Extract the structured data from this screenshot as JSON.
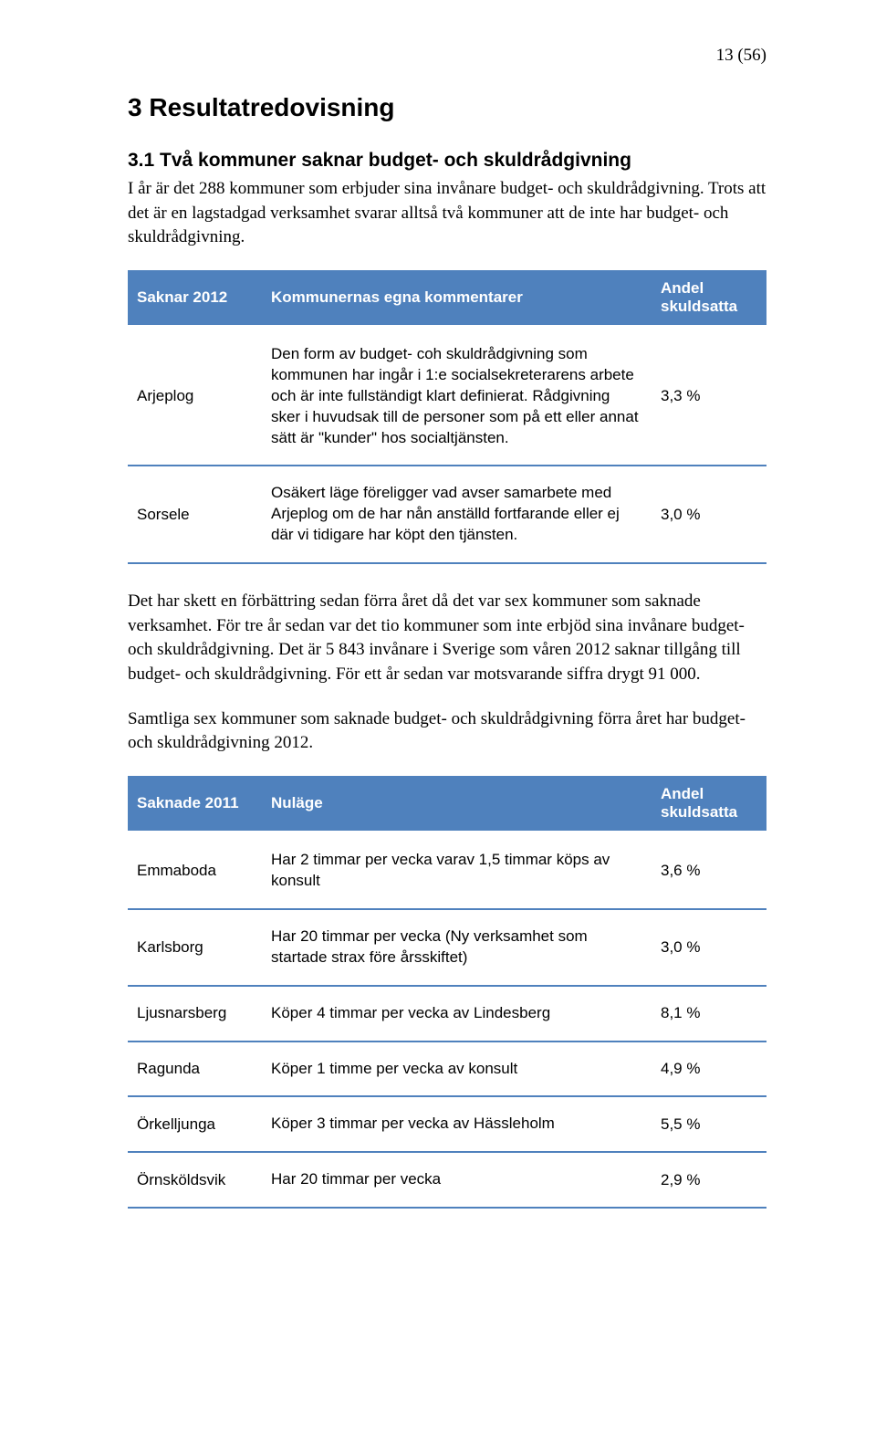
{
  "page_number": "13 (56)",
  "section_heading": "3  Resultatredovisning",
  "subsection_heading": "3.1  Två kommuner saknar budget- och skuldrådgivning",
  "intro_p1": "I år är det 288 kommuner som erbjuder sina invånare budget- och skuldrådgivning. Trots att det är en lagstadgad verksamhet svarar alltså två kommuner att de inte har budget- och skuldrådgivning.",
  "table1": {
    "header_col1": "Saknar 2012",
    "header_col2": "Kommunernas egna kommentarer",
    "header_col3": "Andel skuldsatta",
    "rows": [
      {
        "name": "Arjeplog",
        "comment": "Den form av budget- coh skuldrådgivning som kommunen har ingår i 1:e socialsekreterarens arbete och är inte fullständigt klart definierat. Rådgivning sker i huvudsak till de personer som på ett eller annat sätt är \"kunder\" hos socialtjänsten.",
        "value": "3,3 %"
      },
      {
        "name": "Sorsele",
        "comment": "Osäkert läge föreligger vad avser samarbete med Arjeplog om de har nån anställd fortfarande eller ej där vi tidigare har köpt den tjänsten.",
        "value": "3,0 %"
      }
    ]
  },
  "mid_p1": "Det har skett en förbättring sedan förra året då det var sex kommuner som saknade verksamhet. För tre år sedan var det tio kommuner som inte erbjöd sina invånare budget- och skuldrådgivning. Det är 5 843 invånare i Sverige som våren 2012 saknar tillgång till budget- och skuldrådgivning. För ett år sedan var motsvarande siffra drygt 91 000.",
  "mid_p2": "Samtliga sex kommuner som saknade budget- och skuldrådgivning förra året har budget- och skuldrådgivning 2012.",
  "table2": {
    "header_col1": "Saknade 2011",
    "header_col2": "Nuläge",
    "header_col3": "Andel skuldsatta",
    "rows": [
      {
        "name": "Emmaboda",
        "comment": "Har 2 timmar per vecka varav 1,5 timmar köps av konsult",
        "value": "3,6 %"
      },
      {
        "name": "Karlsborg",
        "comment": "Har 20 timmar per vecka (Ny verksamhet som startade strax före årsskiftet)",
        "value": "3,0 %"
      },
      {
        "name": "Ljusnarsberg",
        "comment": "Köper 4 timmar per vecka av Lindesberg",
        "value": "8,1 %"
      },
      {
        "name": "Ragunda",
        "comment": "Köper 1 timme per vecka av konsult",
        "value": "4,9 %"
      },
      {
        "name": "Örkelljunga",
        "comment": "Köper 3 timmar per vecka av Hässleholm",
        "value": "5,5 %"
      },
      {
        "name": "Örnsköldsvik",
        "comment": "Har 20 timmar per vecka",
        "value": "2,9 %"
      }
    ]
  },
  "colors": {
    "header_bg": "#4f81bd",
    "header_fg": "#ffffff",
    "row_border": "#4f81bd",
    "page_bg": "#ffffff",
    "text": "#000000"
  }
}
